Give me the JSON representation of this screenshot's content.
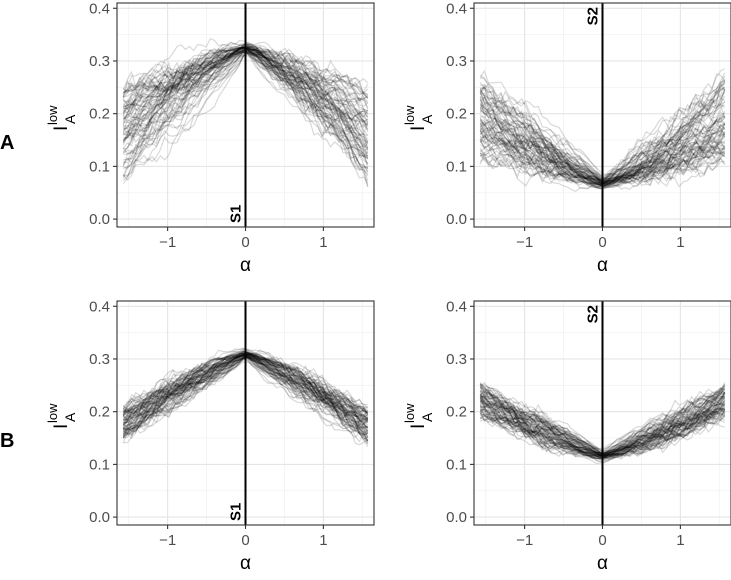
{
  "rows": [
    {
      "label": "A"
    },
    {
      "label": "B"
    }
  ],
  "chart_data": [
    {
      "type": "line",
      "panel": "A-left",
      "row": 0,
      "col": 0,
      "xlabel": "α",
      "ylabel_main": "I",
      "ylabel_sup": "low",
      "ylabel_sub": "A",
      "xlim": [
        -1.65,
        1.65
      ],
      "ylim": [
        -0.015,
        0.41
      ],
      "x_ticks": [
        -1,
        0,
        1
      ],
      "x_tick_labels": [
        "−1",
        "0",
        "1"
      ],
      "y_ticks": [
        0.0,
        0.1,
        0.2,
        0.3,
        0.4
      ],
      "y_tick_labels": [
        "0.0",
        "0.1",
        "0.2",
        "0.3",
        "0.4"
      ],
      "grid": true,
      "vline": {
        "x": 0,
        "label": "S1",
        "label_position": "bottom"
      },
      "line_color": "#000000",
      "line_opacity": 0.15,
      "ensemble": {
        "n_lines": 80,
        "n_points": 60,
        "peak": {
          "x": 0,
          "y": 0.325
        },
        "edge_mean": 0.16,
        "edge_spread": 0.09,
        "noise": 0.012,
        "seed": 11
      }
    },
    {
      "type": "line",
      "panel": "A-right",
      "row": 0,
      "col": 1,
      "xlabel": "α",
      "ylabel_main": "I",
      "ylabel_sup": "low",
      "ylabel_sub": "A",
      "xlim": [
        -1.65,
        1.65
      ],
      "ylim": [
        -0.015,
        0.41
      ],
      "x_ticks": [
        -1,
        0,
        1
      ],
      "x_tick_labels": [
        "−1",
        "0",
        "1"
      ],
      "y_ticks": [
        0.0,
        0.1,
        0.2,
        0.3,
        0.4
      ],
      "y_tick_labels": [
        "0.0",
        "0.1",
        "0.2",
        "0.3",
        "0.4"
      ],
      "grid": true,
      "vline": {
        "x": 0,
        "label": "S2",
        "label_position": "top"
      },
      "line_color": "#000000",
      "line_opacity": 0.15,
      "ensemble": {
        "n_lines": 80,
        "n_points": 60,
        "peak": {
          "x": 0,
          "y": 0.068
        },
        "edge_mean": 0.19,
        "edge_spread": 0.08,
        "noise": 0.012,
        "seed": 23
      }
    },
    {
      "type": "line",
      "panel": "B-left",
      "row": 1,
      "col": 0,
      "xlabel": "α",
      "ylabel_main": "I",
      "ylabel_sup": "low",
      "ylabel_sub": "A",
      "xlim": [
        -1.65,
        1.65
      ],
      "ylim": [
        -0.015,
        0.41
      ],
      "x_ticks": [
        -1,
        0,
        1
      ],
      "x_tick_labels": [
        "−1",
        "0",
        "1"
      ],
      "y_ticks": [
        0.0,
        0.1,
        0.2,
        0.3,
        0.4
      ],
      "y_tick_labels": [
        "0.0",
        "0.1",
        "0.2",
        "0.3",
        "0.4"
      ],
      "grid": true,
      "vline": {
        "x": 0,
        "label": "S1",
        "label_position": "bottom"
      },
      "line_color": "#000000",
      "line_opacity": 0.15,
      "ensemble": {
        "n_lines": 80,
        "n_points": 60,
        "peak": {
          "x": 0,
          "y": 0.31
        },
        "edge_mean": 0.175,
        "edge_spread": 0.03,
        "noise": 0.009,
        "seed": 37
      }
    },
    {
      "type": "line",
      "panel": "B-right",
      "row": 1,
      "col": 1,
      "xlabel": "α",
      "ylabel_main": "I",
      "ylabel_sup": "low",
      "ylabel_sub": "A",
      "xlim": [
        -1.65,
        1.65
      ],
      "ylim": [
        -0.015,
        0.41
      ],
      "x_ticks": [
        -1,
        0,
        1
      ],
      "x_tick_labels": [
        "−1",
        "0",
        "1"
      ],
      "y_ticks": [
        0.0,
        0.1,
        0.2,
        0.3,
        0.4
      ],
      "y_tick_labels": [
        "0.0",
        "0.1",
        "0.2",
        "0.3",
        "0.4"
      ],
      "grid": true,
      "vline": {
        "x": 0,
        "label": "S2",
        "label_position": "top"
      },
      "line_color": "#000000",
      "line_opacity": 0.15,
      "ensemble": {
        "n_lines": 80,
        "n_points": 60,
        "peak": {
          "x": 0,
          "y": 0.115
        },
        "edge_mean": 0.22,
        "edge_spread": 0.03,
        "noise": 0.009,
        "seed": 51
      }
    }
  ]
}
